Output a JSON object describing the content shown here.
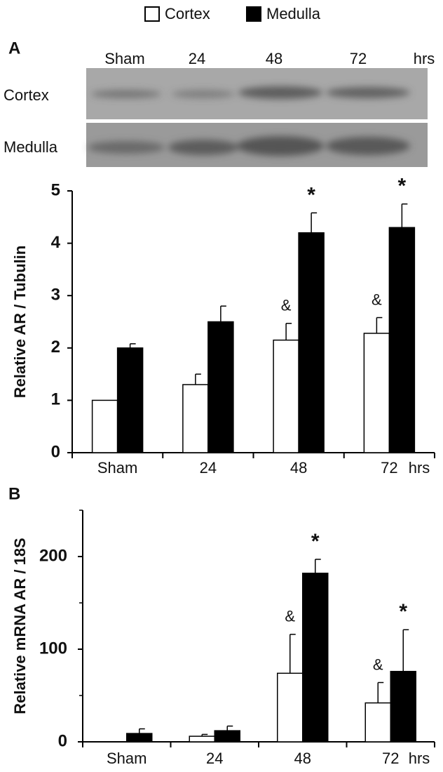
{
  "blot": {
    "label": "A",
    "lanes": [
      "Sham",
      "24",
      "48",
      "72"
    ],
    "unit": "hrs",
    "rows": [
      "Cortex",
      "Medulla"
    ]
  },
  "chart_data": [
    {
      "type": "bar",
      "ylabel": "Relative AR / Tubulin",
      "categories": [
        "Sham",
        "24",
        "48",
        "72"
      ],
      "xlabel": "hrs",
      "series": [
        {
          "name": "Cortex",
          "color": "#ffffff",
          "values": [
            1.0,
            1.3,
            2.15,
            2.28
          ],
          "errors": [
            null,
            0.2,
            0.32,
            0.3
          ],
          "annotations": [
            null,
            null,
            "&",
            "&"
          ]
        },
        {
          "name": "Medulla",
          "color": "#000000",
          "values": [
            2.0,
            2.5,
            4.2,
            4.3
          ],
          "errors": [
            0.08,
            0.3,
            0.38,
            0.45
          ],
          "annotations": [
            null,
            null,
            "*",
            "*"
          ]
        }
      ],
      "ylim": [
        0,
        5
      ],
      "yticks": [
        0,
        1,
        2,
        3,
        4,
        5
      ]
    },
    {
      "type": "bar",
      "panel_label": "B",
      "ylabel": "Relative mRNA AR / 18S",
      "categories": [
        "Sham",
        "24",
        "48",
        "72"
      ],
      "xlabel": "hrs",
      "series": [
        {
          "name": "Cortex",
          "color": "#ffffff",
          "values": [
            0,
            6,
            74,
            42
          ],
          "errors": [
            null,
            2,
            42,
            22
          ],
          "annotations": [
            null,
            null,
            "&",
            "&"
          ]
        },
        {
          "name": "Medulla",
          "color": "#000000",
          "values": [
            9,
            12,
            182,
            76
          ],
          "errors": [
            5,
            5,
            15,
            45
          ],
          "annotations": [
            null,
            null,
            "*",
            "*"
          ]
        }
      ],
      "ylim": [
        0,
        250
      ],
      "yticks": [
        0,
        100,
        200
      ],
      "minor_yticks": [
        50,
        150,
        250
      ]
    }
  ]
}
